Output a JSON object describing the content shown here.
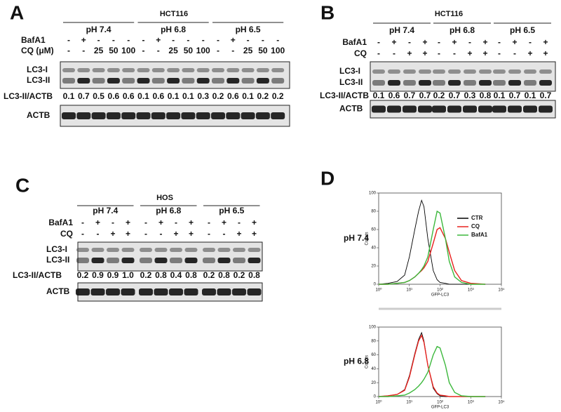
{
  "panels": [
    {
      "letter": "A",
      "cell_line": "HCT116",
      "groups": [
        "pH 7.4",
        "pH 6.8",
        "pH 6.5"
      ],
      "treatments": [
        {
          "label": "BafA1",
          "lanes": [
            "-",
            "+",
            "-",
            "-",
            "-",
            "-",
            "+",
            "-",
            "-",
            "-",
            "-",
            "+",
            "-",
            "-",
            "-"
          ]
        },
        {
          "label": "CQ (μM)",
          "lanes": [
            "-",
            "-",
            "25",
            "50",
            "100",
            "-",
            "-",
            "25",
            "50",
            "100",
            "-",
            "-",
            "25",
            "50",
            "100"
          ]
        }
      ],
      "bands": [
        "LC3-I",
        "LC3-II"
      ],
      "ratio_label": "LC3-II/ACTB",
      "ratios": [
        "0.1",
        "0.7",
        "0.5",
        "0.6",
        "0.6",
        "0.1",
        "0.6",
        "0.1",
        "0.1",
        "0.3",
        "0.2",
        "0.6",
        "0.1",
        "0.2",
        "0.2"
      ],
      "loading_control": "ACTB"
    },
    {
      "letter": "B",
      "cell_line": "HCT116",
      "groups": [
        "pH 7.4",
        "pH 6.8",
        "pH 6.5"
      ],
      "treatments": [
        {
          "label": "BafA1",
          "lanes": [
            "-",
            "+",
            "-",
            "+",
            "-",
            "+",
            "-",
            "+",
            "-",
            "+",
            "-",
            "+"
          ]
        },
        {
          "label": "CQ",
          "lanes": [
            "-",
            "-",
            "+",
            "+",
            "-",
            "-",
            "+",
            "+",
            "-",
            "-",
            "+",
            "+"
          ]
        }
      ],
      "bands": [
        "LC3-I",
        "LC3-II"
      ],
      "ratio_label": "LC3-II/ACTB",
      "ratios": [
        "0.1",
        "0.6",
        "0.7",
        "0.7",
        "0.2",
        "0.7",
        "0.3",
        "0.8",
        "0.1",
        "0.7",
        "0.1",
        "0.7"
      ],
      "loading_control": "ACTB"
    },
    {
      "letter": "C",
      "cell_line": "HOS",
      "groups": [
        "pH 7.4",
        "pH 6.8",
        "pH 6.5"
      ],
      "treatments": [
        {
          "label": "BafA1",
          "lanes": [
            "-",
            "+",
            "-",
            "+",
            "-",
            "+",
            "-",
            "+",
            "-",
            "+",
            "-",
            "+"
          ]
        },
        {
          "label": "CQ",
          "lanes": [
            "-",
            "-",
            "+",
            "+",
            "-",
            "-",
            "+",
            "+",
            "-",
            "-",
            "+",
            "+"
          ]
        }
      ],
      "bands": [
        "LC3-I",
        "LC3-II"
      ],
      "ratio_label": "LC3-II/ACTB",
      "ratios": [
        "0.2",
        "0.9",
        "0.9",
        "1.0",
        "0.2",
        "0.8",
        "0.4",
        "0.8",
        "0.2",
        "0.8",
        "0.2",
        "0.8"
      ],
      "loading_control": "ACTB"
    }
  ],
  "flow": {
    "letter": "D",
    "type": "line",
    "ylabel": "Counts",
    "xlabel": "GFP-LC3",
    "log_x": true,
    "xlim": [
      1,
      10000
    ],
    "ylim": [
      0,
      100
    ],
    "yticks": [
      0,
      20,
      40,
      60,
      80,
      100
    ],
    "xticks": [
      {
        "value": 1,
        "label": "10⁰"
      },
      {
        "value": 10,
        "label": "10¹"
      },
      {
        "value": 100,
        "label": "10²"
      },
      {
        "value": 1000,
        "label": "10³"
      },
      {
        "value": 10000,
        "label": "10⁴"
      }
    ],
    "legend": [
      {
        "name": "CTR",
        "color": "#000000"
      },
      {
        "name": "CQ",
        "color": "#e8231f"
      },
      {
        "name": "BafA1",
        "color": "#3cb83c"
      }
    ],
    "x": [
      1,
      2,
      4,
      7,
      10,
      15,
      20,
      25,
      30,
      40,
      60,
      80,
      100,
      150,
      200,
      300,
      500,
      1000,
      3000
    ],
    "plots": [
      {
        "label": "pH 7.4",
        "values": [
          [
            0,
            1,
            3,
            10,
            30,
            60,
            80,
            92,
            85,
            50,
            15,
            5,
            2,
            1,
            0,
            0,
            0,
            0,
            0
          ],
          [
            0,
            0,
            1,
            2,
            4,
            8,
            12,
            15,
            18,
            25,
            45,
            60,
            62,
            50,
            35,
            15,
            4,
            1,
            0
          ],
          [
            0,
            0,
            1,
            2,
            4,
            8,
            12,
            16,
            20,
            30,
            60,
            80,
            78,
            50,
            25,
            8,
            2,
            0,
            0
          ]
        ]
      },
      {
        "label": "pH 6.8",
        "values": [
          [
            0,
            1,
            3,
            10,
            30,
            62,
            82,
            92,
            80,
            45,
            12,
            4,
            1,
            0,
            0,
            0,
            0,
            0,
            0
          ],
          [
            0,
            1,
            3,
            9,
            28,
            60,
            80,
            88,
            78,
            45,
            14,
            5,
            2,
            1,
            0,
            0,
            0,
            0,
            0
          ],
          [
            0,
            0,
            1,
            2,
            5,
            10,
            15,
            20,
            25,
            35,
            60,
            72,
            70,
            45,
            20,
            6,
            1,
            0,
            0
          ]
        ]
      }
    ]
  }
}
